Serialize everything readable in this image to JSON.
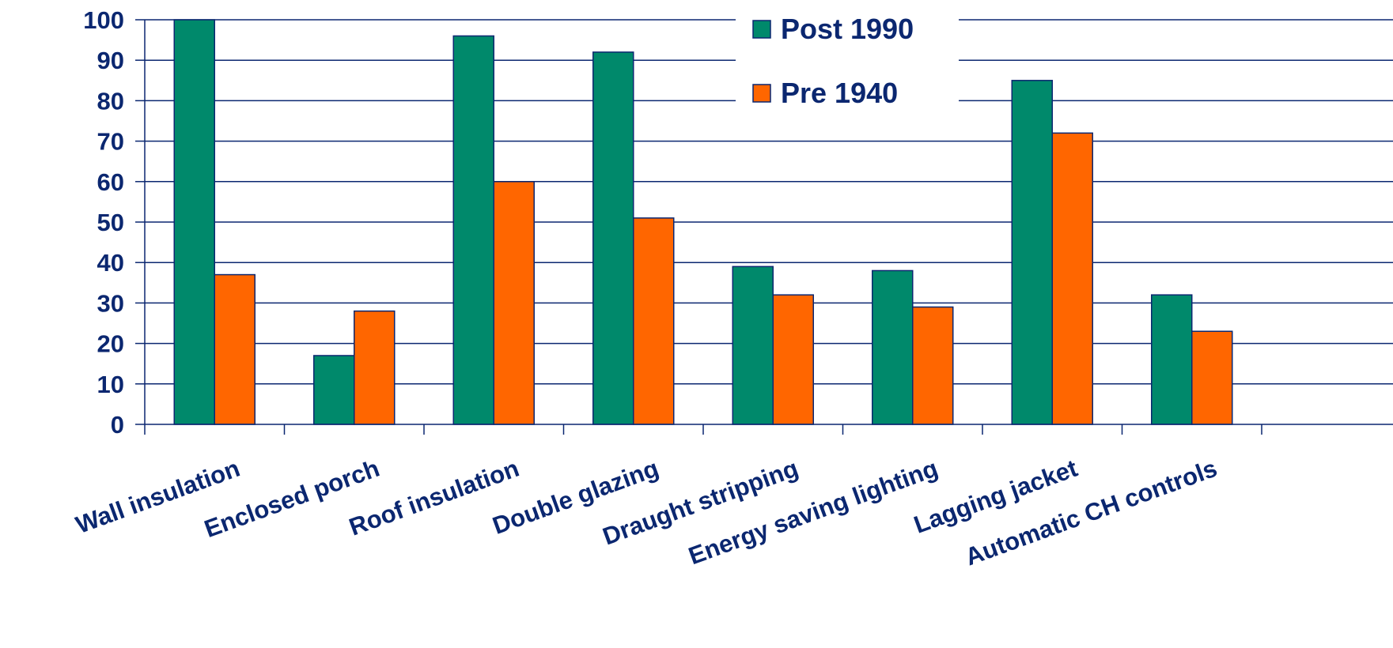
{
  "chart_data": {
    "type": "bar",
    "title": "",
    "xlabel": "",
    "ylabel": "",
    "ylim": [
      0,
      100
    ],
    "yticks": [
      0,
      10,
      20,
      30,
      40,
      50,
      60,
      70,
      80,
      90,
      100
    ],
    "grid": true,
    "legend_position": "top-center",
    "categories": [
      "Wall insulation",
      "Enclosed porch",
      "Roof insulation",
      "Double glazing",
      "Draught stripping",
      "Energy saving lighting",
      "Lagging jacket",
      "Automatic CH controls",
      ""
    ],
    "series": [
      {
        "name": "Post 1990",
        "color": "#00896B",
        "values": [
          100,
          17,
          96,
          92,
          39,
          38,
          85,
          32,
          null
        ]
      },
      {
        "name": "Pre 1940",
        "color": "#FF6600",
        "values": [
          37,
          28,
          60,
          51,
          32,
          29,
          72,
          23,
          null
        ]
      }
    ],
    "text_color": "#0B2770"
  }
}
